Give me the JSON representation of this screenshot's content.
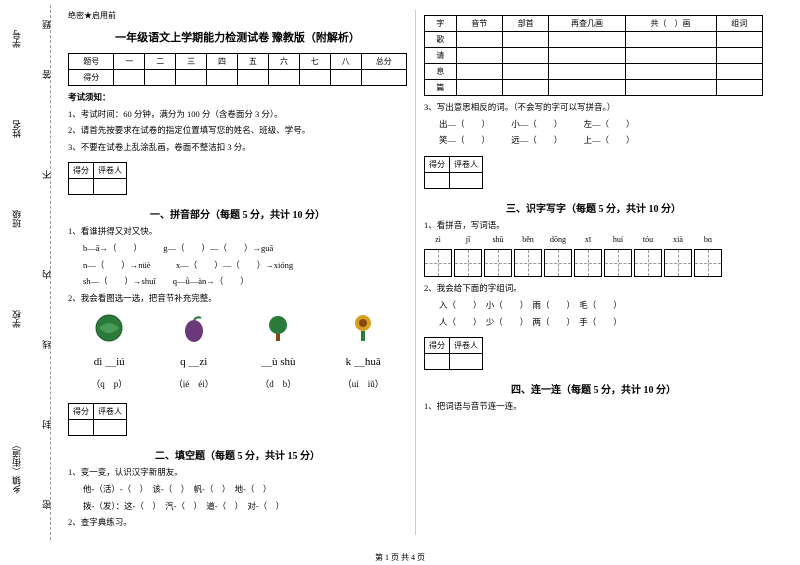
{
  "sidebar": {
    "items": [
      "学号",
      "姓名",
      "班级",
      "学校",
      "乡镇（街道）"
    ],
    "markers": [
      "题",
      "答",
      "不",
      "内",
      "线",
      "封",
      "密"
    ]
  },
  "confidential": "绝密★启用前",
  "title": "一年级语文上学期能力检测试卷 豫教版（附解析）",
  "score_table": {
    "row1": [
      "题号",
      "一",
      "二",
      "三",
      "四",
      "五",
      "六",
      "七",
      "八",
      "总分"
    ],
    "row2": [
      "得分",
      "",
      "",
      "",
      "",
      "",
      "",
      "",
      "",
      ""
    ]
  },
  "notice_title": "考试须知：",
  "notices": [
    "1、考试时间：60 分钟，满分为 100 分（含卷面分 3 分）。",
    "2、请首先按要求在试卷的指定位置填写您的姓名、班级、学号。",
    "3、不要在试卷上乱涂乱画，卷面不整洁扣 3 分。"
  ],
  "grader_labels": [
    "得分",
    "评卷人"
  ],
  "section1": {
    "title": "一、拼音部分（每题 5 分，共计 10 分）",
    "q1": "1、看谁拼得又对又快。",
    "pinyin_lines": [
      "b—ā→（　　）　　　g—（　　）—（　　）→guā",
      "n—（　　）→nüè　　　x—（　　）—（　　）→xióng",
      "sh—（　　）→shuǐ　　q—ǜ—àn→（　　）"
    ],
    "q2": "2、我会看图选一选，把音节补充完整。",
    "icons": [
      {
        "label": "dì ＿iú",
        "choices": "（q　p）",
        "color": "#2a7a3a"
      },
      {
        "label": "q ＿zi",
        "choices": "（ié　éi）",
        "color": "#6b3a7a"
      },
      {
        "label": "＿ù shù",
        "choices": "（d　b）",
        "color": "#2a7a3a"
      },
      {
        "label": "k ＿huā",
        "choices": "（uí　iǔ）",
        "color": "#d4a020"
      }
    ]
  },
  "section2": {
    "title": "二、填空题（每题 5 分，共计 15 分）",
    "q1": "1、变一变，认识汉字新朋友。",
    "lines": [
      "他-（活）-（　）　该-（　）　帆-（　）　地-（　）",
      "拨-（发）：这-（　）　汽-（　）　道-（　）　对-（　）"
    ],
    "q2": "2、查字典练习。"
  },
  "char_table": {
    "headers": [
      "字",
      "音节",
      "部首",
      "再查几画",
      "共（　）画",
      "组词"
    ],
    "rows": [
      "歌",
      "请",
      "息",
      "篇"
    ]
  },
  "section3_intro": "3、写出意思相反的词。（不会写的字可以写拼音。）",
  "opposites": [
    "出—（　　）　　　小—（　　）　　　左—（　　）",
    "笑—（　　）　　　远—（　　）　　　上—（　　）"
  ],
  "section3": {
    "title": "三、识字写字（每题 5 分，共计 10 分）",
    "q1": "1、看拼音，写词语。",
    "pinyin": [
      "zì",
      "jǐ",
      "shū",
      "běn",
      "dōng",
      "xī",
      "huí",
      "tóu",
      "xià",
      "bɑ"
    ],
    "q2": "2、我会给下面的字组词。",
    "words": [
      "入（　　）　小（　　）　雨（　　）　毛（　　）",
      "人（　　）　少（　　）　两（　　）　手（　　）"
    ]
  },
  "section4": {
    "title": "四、连一连（每题 5 分，共计 10 分）",
    "q1": "1、把词语与音节连一连。"
  },
  "footer": "第 1 页 共 4 页"
}
